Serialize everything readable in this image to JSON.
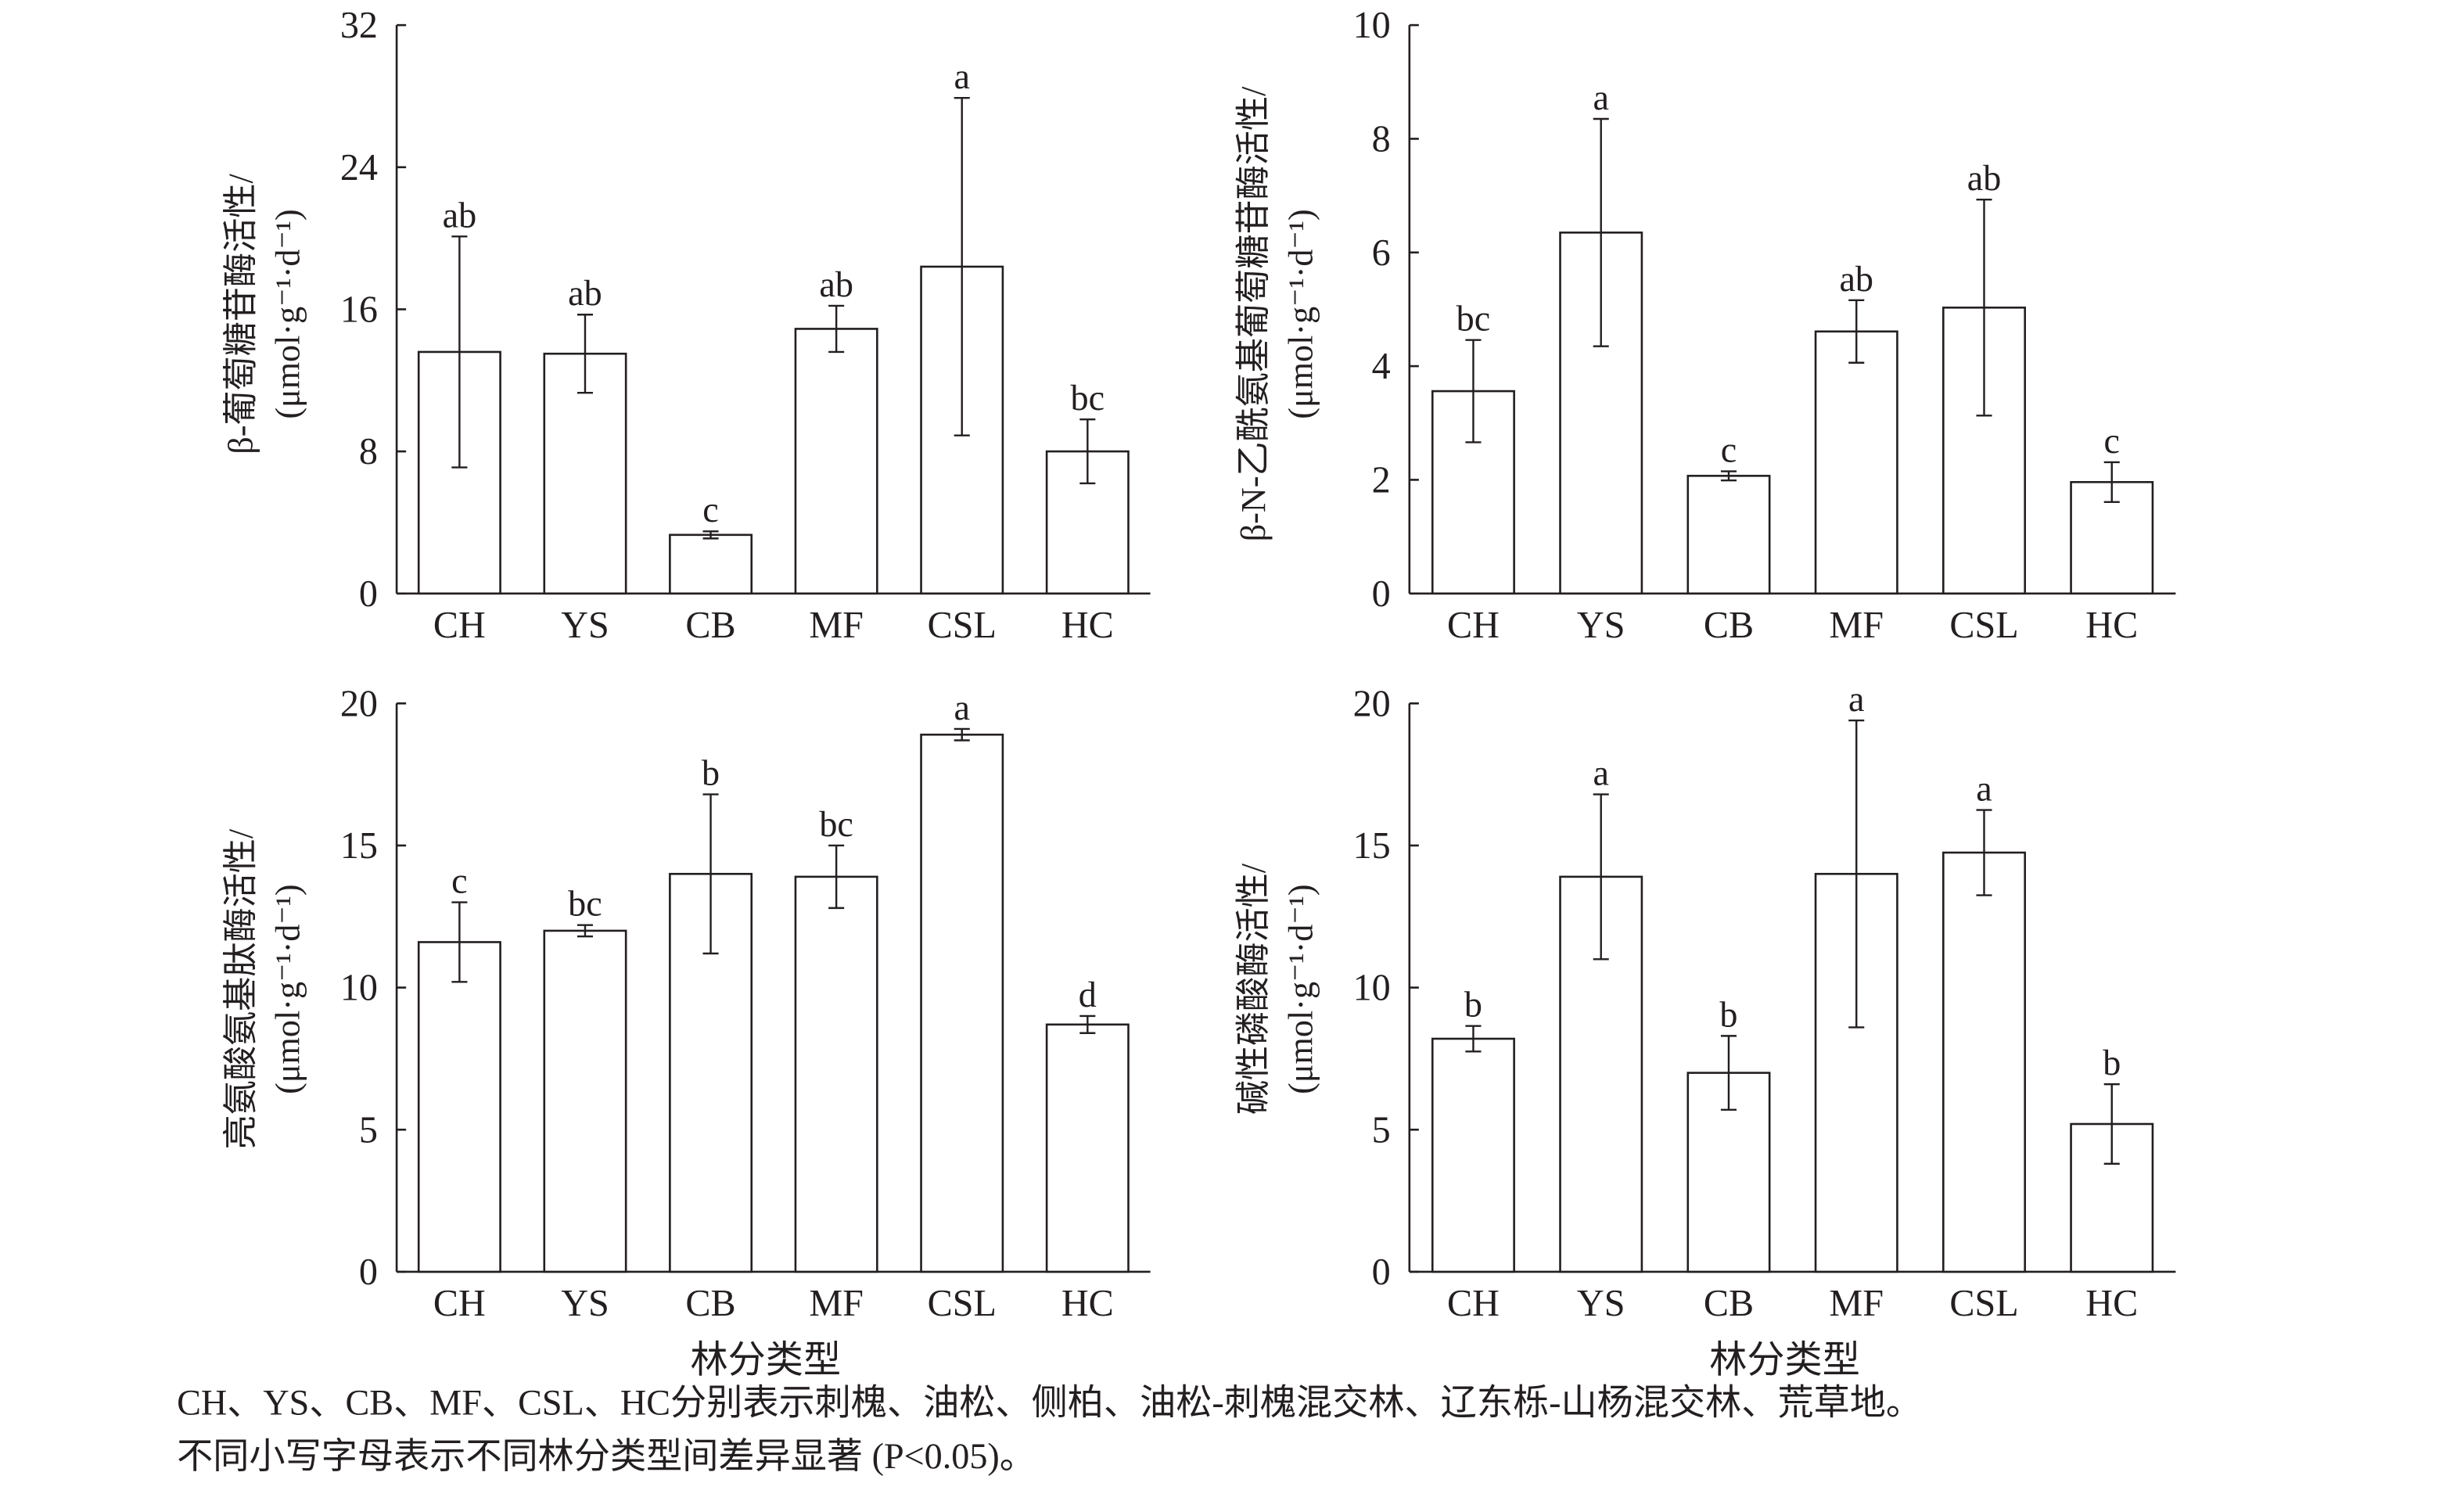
{
  "chart_data": [
    {
      "type": "bar",
      "ylabel": [
        "β-葡萄糖苷酶活性/",
        "(μmol·g⁻¹·d⁻¹)"
      ],
      "categories": [
        "CH",
        "YS",
        "CB",
        "MF",
        "CSL",
        "HC"
      ],
      "values": [
        13.6,
        13.5,
        3.3,
        14.9,
        18.4,
        8.0
      ],
      "errors": [
        6.5,
        2.2,
        0.2,
        1.3,
        9.5,
        1.8
      ],
      "annotations": [
        "ab",
        "ab",
        "c",
        "ab",
        "a",
        "bc"
      ],
      "ylim": [
        0,
        32
      ],
      "yticks": [
        0,
        8,
        16,
        24,
        32
      ],
      "color": "#ffffff"
    },
    {
      "type": "bar",
      "ylabel": [
        "β-N-乙酰氨基葡萄糖苷酶活性/",
        "(μmol·g⁻¹·d⁻¹)"
      ],
      "categories": [
        "CH",
        "YS",
        "CB",
        "MF",
        "CSL",
        "HC"
      ],
      "values": [
        3.56,
        6.35,
        2.07,
        4.61,
        5.03,
        1.96
      ],
      "errors": [
        0.9,
        2.0,
        0.08,
        0.55,
        1.9,
        0.35
      ],
      "annotations": [
        "bc",
        "a",
        "c",
        "ab",
        "ab",
        "c"
      ],
      "ylim": [
        0,
        10
      ],
      "yticks": [
        0,
        2,
        4,
        6,
        8,
        10
      ],
      "color": "#ffffff"
    },
    {
      "type": "bar",
      "ylabel": [
        "亮氨酸氨基肽酶活性/",
        "(μmol·g⁻¹·d⁻¹)"
      ],
      "xlabel": "林分类型",
      "categories": [
        "CH",
        "YS",
        "CB",
        "MF",
        "CSL",
        "HC"
      ],
      "values": [
        11.6,
        12.0,
        14.0,
        13.9,
        18.9,
        8.7
      ],
      "errors": [
        1.4,
        0.2,
        2.8,
        1.1,
        0.2,
        0.3
      ],
      "annotations": [
        "c",
        "bc",
        "b",
        "bc",
        "a",
        "d"
      ],
      "ylim": [
        0,
        20
      ],
      "yticks": [
        0,
        5,
        10,
        15,
        20
      ],
      "color": "#ffffff"
    },
    {
      "type": "bar",
      "ylabel": [
        "碱性磷酸酶活性/",
        "(μmol·g⁻¹·d⁻¹)"
      ],
      "xlabel": "林分类型",
      "categories": [
        "CH",
        "YS",
        "CB",
        "MF",
        "CSL",
        "HC"
      ],
      "values": [
        8.2,
        13.9,
        7.0,
        14.0,
        14.75,
        5.2
      ],
      "errors": [
        0.45,
        2.9,
        1.3,
        5.4,
        1.5,
        1.4
      ],
      "annotations": [
        "b",
        "a",
        "b",
        "a",
        "a",
        "b"
      ],
      "ylim": [
        0,
        20
      ],
      "yticks": [
        0,
        5,
        10,
        15,
        20
      ],
      "color": "#ffffff"
    }
  ],
  "caption": [
    "CH、YS、CB、MF、CSL、HC分别表示刺槐、油松、侧柏、油松-刺槐混交林、辽东栎-山杨混交林、荒草地。",
    "不同小写字母表示不同林分类型间差异显著 (P<0.05)。"
  ]
}
